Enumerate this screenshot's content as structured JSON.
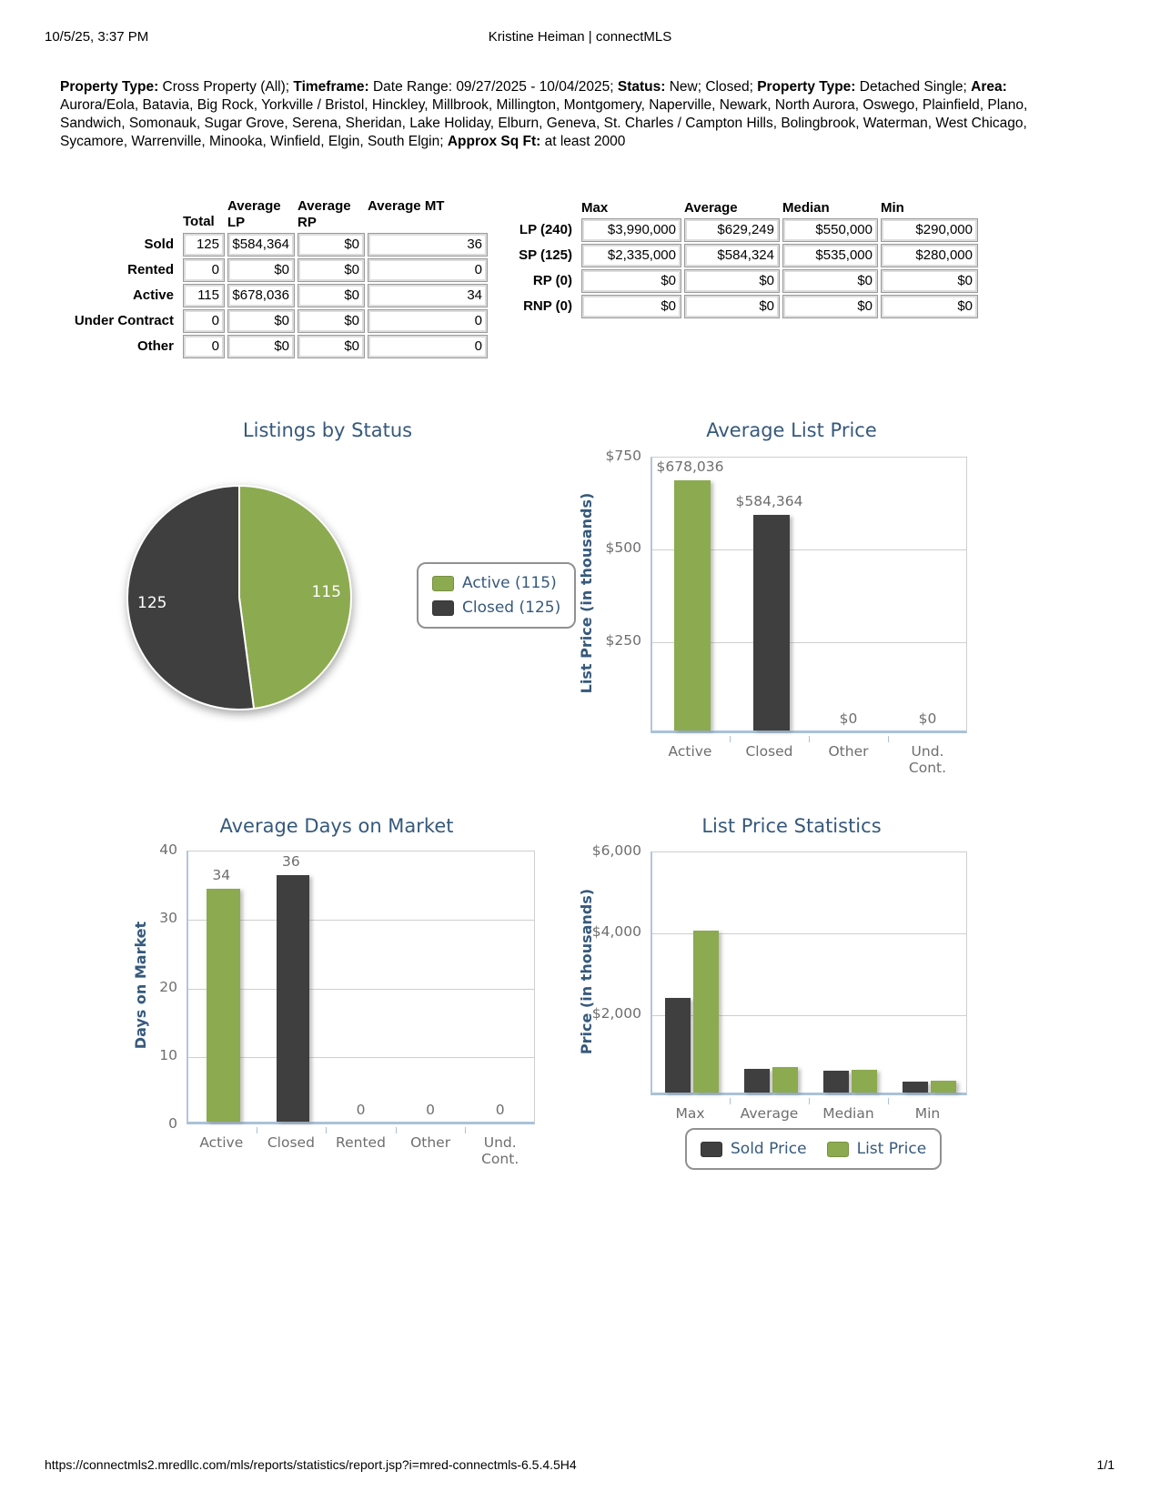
{
  "page": {
    "printed_at": "10/5/25, 3:37 PM",
    "header_title": "Kristine Heiman | connectMLS",
    "footer_url": "https://connectmls2.mredllc.com/mls/reports/statistics/report.jsp?i=mred-connectmls-6.5.4.5H4",
    "page_number": "1/1"
  },
  "criteria": {
    "segments": [
      {
        "bold": "Property Type:",
        "text": " Cross Property (All); "
      },
      {
        "bold": "Timeframe:",
        "text": " Date Range: 09/27/2025 - 10/04/2025; "
      },
      {
        "bold": "Status:",
        "text": " New; Closed; "
      },
      {
        "bold": "Property Type:",
        "text": " Detached Single; "
      },
      {
        "bold": "Area:",
        "text": " Aurora/Eola, Batavia, Big Rock, Yorkville / Bristol, Hinckley, Millbrook, Millington, Montgomery, Naperville, Newark, North Aurora, Oswego, Plainfield, Plano, Sandwich, Somonauk, Sugar Grove, Serena, Sheridan, Lake Holiday, Elburn, Geneva, St. Charles / Campton Hills, Bolingbrook, Waterman, West Chicago, Sycamore, Warrenville, Minooka, Winfield, Elgin, South Elgin; "
      },
      {
        "bold": "Approx Sq Ft:",
        "text": " at least 2000"
      }
    ]
  },
  "status_table": {
    "headers": [
      "Total",
      "Average\nLP",
      "Average\nRP",
      "Average MT"
    ],
    "rows": [
      {
        "label": "Sold",
        "values": [
          "125",
          "$584,364",
          "$0",
          "36"
        ]
      },
      {
        "label": "Rented",
        "values": [
          "0",
          "$0",
          "$0",
          "0"
        ]
      },
      {
        "label": "Active",
        "values": [
          "115",
          "$678,036",
          "$0",
          "34"
        ]
      },
      {
        "label": "Under Contract",
        "values": [
          "0",
          "$0",
          "$0",
          "0"
        ]
      },
      {
        "label": "Other",
        "values": [
          "0",
          "$0",
          "$0",
          "0"
        ]
      }
    ]
  },
  "price_table": {
    "headers": [
      "Max",
      "Average",
      "Median",
      "Min"
    ],
    "rows": [
      {
        "label": "LP (240)",
        "values": [
          "$3,990,000",
          "$629,249",
          "$550,000",
          "$290,000"
        ]
      },
      {
        "label": "SP (125)",
        "values": [
          "$2,335,000",
          "$584,324",
          "$535,000",
          "$280,000"
        ]
      },
      {
        "label": "RP (0)",
        "values": [
          "$0",
          "$0",
          "$0",
          "$0"
        ]
      },
      {
        "label": "RNP (0)",
        "values": [
          "$0",
          "$0",
          "$0",
          "$0"
        ]
      }
    ]
  },
  "colors": {
    "green": "#8caa4f",
    "dark": "#3f3f3f",
    "title_blue": "#36597c",
    "label_gray": "#6e6e6e",
    "grid_line": "#cfcfcf",
    "axis_line": "#aac2d8"
  },
  "chart_data": [
    {
      "type": "pie",
      "title": "Listings by Status",
      "slices": [
        {
          "label": "Active",
          "value": 115,
          "color_key": "green"
        },
        {
          "label": "Closed",
          "value": 125,
          "color_key": "dark"
        }
      ],
      "slice_labels": [
        "115",
        "125"
      ],
      "legend": [
        "Active (115)",
        "Closed (125)"
      ],
      "legend_position": "right"
    },
    {
      "type": "bar",
      "title": "Average List Price",
      "ylabel": "List Price (in thousands)",
      "categories": [
        "Active",
        "Closed",
        "Other",
        "Und.\nCont."
      ],
      "values": [
        678036,
        584364,
        0,
        0
      ],
      "value_labels": [
        "$678,036",
        "$584,364",
        "$0",
        "$0"
      ],
      "bar_colors": [
        "green",
        "dark",
        "green",
        "green"
      ],
      "ylim": [
        0,
        750000
      ],
      "yticks": [
        {
          "label": "$750",
          "value": 750000
        },
        {
          "label": "$500",
          "value": 500000
        },
        {
          "label": "$250",
          "value": 250000
        }
      ],
      "grid": true
    },
    {
      "type": "bar",
      "title": "Average Days on Market",
      "ylabel": "Days on Market",
      "categories": [
        "Active",
        "Closed",
        "Rented",
        "Other",
        "Und.\nCont."
      ],
      "values": [
        34,
        36,
        0,
        0,
        0
      ],
      "value_labels": [
        "34",
        "36",
        "0",
        "0",
        "0"
      ],
      "bar_colors": [
        "green",
        "dark",
        "green",
        "green",
        "green"
      ],
      "ylim": [
        0,
        40
      ],
      "yticks": [
        {
          "label": "40",
          "value": 40
        },
        {
          "label": "30",
          "value": 30
        },
        {
          "label": "20",
          "value": 20
        },
        {
          "label": "10",
          "value": 10
        },
        {
          "label": "0",
          "value": 0
        }
      ],
      "grid": true
    },
    {
      "type": "bar-grouped",
      "title": "List Price Statistics",
      "ylabel": "Price (in thousands)",
      "categories": [
        "Max",
        "Average",
        "Median",
        "Min"
      ],
      "series": [
        {
          "name": "Sold Price",
          "color_key": "dark",
          "values": [
            2335000,
            584324,
            535000,
            280000
          ]
        },
        {
          "name": "List Price",
          "color_key": "green",
          "values": [
            3990000,
            629249,
            550000,
            290000
          ]
        }
      ],
      "ylim": [
        0,
        6000000
      ],
      "yticks": [
        {
          "label": "$6,000",
          "value": 6000000
        },
        {
          "label": "$4,000",
          "value": 4000000
        },
        {
          "label": "$2,000",
          "value": 2000000
        }
      ],
      "grid": true,
      "legend_position": "bottom"
    }
  ]
}
